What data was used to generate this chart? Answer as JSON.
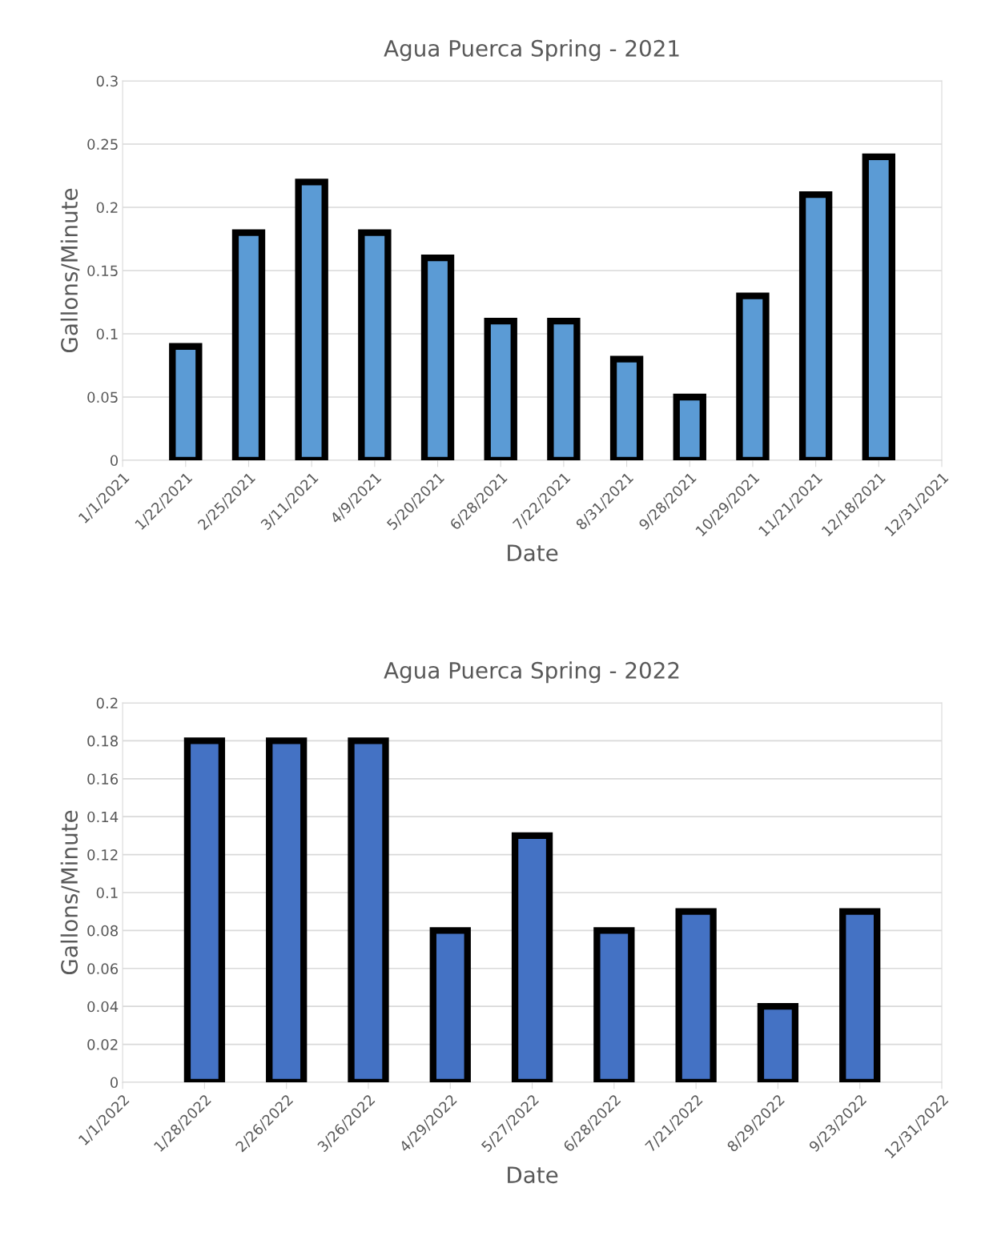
{
  "chart_data": [
    {
      "type": "bar",
      "title": "Agua Puerca Spring - 2021",
      "xlabel": "Date",
      "ylabel": "Gallons/Minute",
      "categories": [
        "1/1/2021",
        "1/22/2021",
        "2/25/2021",
        "3/11/2021",
        "4/9/2021",
        "5/20/2021",
        "6/28/2021",
        "7/22/2021",
        "8/31/2021",
        "9/28/2021",
        "10/29/2021",
        "11/21/2021",
        "12/18/2021",
        "12/31/2021"
      ],
      "series": [
        {
          "color": "#5b9bd5",
          "values": [
            null,
            0.09,
            0.18,
            0.22,
            0.18,
            0.16,
            0.11,
            0.11,
            0.08,
            0.05,
            0.13,
            0.21,
            0.24,
            null
          ]
        }
      ],
      "ylim": [
        0,
        0.3
      ],
      "yticks": [
        0,
        0.05,
        0.1,
        0.15,
        0.2,
        0.25,
        0.3
      ],
      "grid": "y",
      "legend": false
    },
    {
      "type": "bar",
      "title": "Agua Puerca Spring - 2022",
      "xlabel": "Date",
      "ylabel": "Gallons/Minute",
      "categories": [
        "1/1/2022",
        "1/28/2022",
        "2/26/2022",
        "3/26/2022",
        "4/29/2022",
        "5/27/2022",
        "6/28/2022",
        "7/21/2022",
        "8/29/2022",
        "9/23/2022",
        "12/31/2022"
      ],
      "series": [
        {
          "color": "#4472c4",
          "values": [
            null,
            0.18,
            0.18,
            0.18,
            0.08,
            0.13,
            0.08,
            0.09,
            0.04,
            0.09,
            null
          ]
        }
      ],
      "ylim": [
        0,
        0.2
      ],
      "yticks": [
        0,
        0.02,
        0.04,
        0.06,
        0.08,
        0.1,
        0.12,
        0.14,
        0.16,
        0.18,
        0.2
      ],
      "grid": "y",
      "legend": false
    }
  ]
}
